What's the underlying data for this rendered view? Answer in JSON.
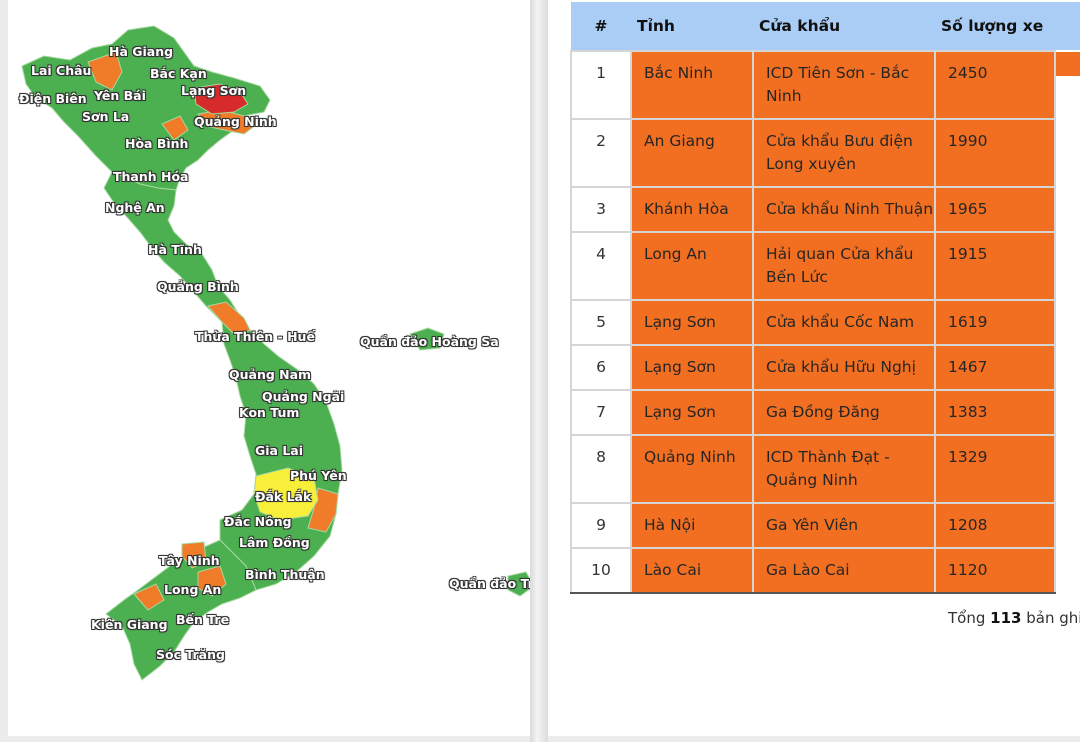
{
  "map": {
    "labels": [
      {
        "id": "ha-giang",
        "text": "Hà Giang"
      },
      {
        "id": "lai-chau",
        "text": "Lai Châu"
      },
      {
        "id": "bac-kan",
        "text": "Bắc Kạn"
      },
      {
        "id": "lang-son",
        "text": "Lạng Sơn"
      },
      {
        "id": "yen-bai",
        "text": "Yên Bái"
      },
      {
        "id": "dien-bien",
        "text": "Điện Biên"
      },
      {
        "id": "son-la",
        "text": "Sơn La"
      },
      {
        "id": "quang-ninh",
        "text": "Quảng Ninh"
      },
      {
        "id": "hoa-binh",
        "text": "Hòa Bình"
      },
      {
        "id": "thanh-hoa",
        "text": "Thanh Hóa"
      },
      {
        "id": "nghe-an",
        "text": "Nghệ An"
      },
      {
        "id": "ha-tinh",
        "text": "Hà Tĩnh"
      },
      {
        "id": "quang-binh",
        "text": "Quảng Bình"
      },
      {
        "id": "thua-thien-hue",
        "text": "Thừa Thiên - Huế"
      },
      {
        "id": "hoang-sa",
        "text": "Quần đảo Hoàng Sa"
      },
      {
        "id": "quang-nam",
        "text": "Quảng Nam"
      },
      {
        "id": "quang-ngai",
        "text": "Quảng Ngãi"
      },
      {
        "id": "kon-tum",
        "text": "Kon Tum"
      },
      {
        "id": "gia-lai",
        "text": "Gia Lai"
      },
      {
        "id": "phu-yen",
        "text": "Phú Yên"
      },
      {
        "id": "dak-lak",
        "text": "Đắk Lắk"
      },
      {
        "id": "dak-nong",
        "text": "Đắc Nông"
      },
      {
        "id": "lam-dong",
        "text": "Lâm Đồng"
      },
      {
        "id": "tay-ninh",
        "text": "Tây Ninh"
      },
      {
        "id": "binh-thuan",
        "text": "Bình Thuận"
      },
      {
        "id": "long-an",
        "text": "Long An"
      },
      {
        "id": "truong-sa",
        "text": "Quần đảo Tr"
      },
      {
        "id": "kien-giang",
        "text": "Kiên Giang"
      },
      {
        "id": "ben-tre",
        "text": "Bến Tre"
      },
      {
        "id": "soc-trang",
        "text": "Sóc Trăng"
      }
    ],
    "colors": {
      "base": "#4caf50",
      "medium": "#f07c2a",
      "high": "#d72a2a",
      "highlight_yellow": "#f7ef3a",
      "border": "#a6d8a0"
    }
  },
  "table": {
    "headers": [
      "#",
      "Tỉnh",
      "Cửa khẩu",
      "Số lượng xe"
    ],
    "rows": [
      {
        "rank": "1",
        "province": "Bắc Ninh",
        "gate": "ICD Tiên Sơn - Bắc Ninh",
        "vehicles": "2450"
      },
      {
        "rank": "2",
        "province": "An Giang",
        "gate": "Cửa khẩu Bưu điện Long xuyên",
        "vehicles": "1990"
      },
      {
        "rank": "3",
        "province": "Khánh Hòa",
        "gate": "Cửa khẩu Ninh Thuận",
        "vehicles": "1965"
      },
      {
        "rank": "4",
        "province": "Long An",
        "gate": "Hải quan Cửa khẩu Bến Lức",
        "vehicles": "1915"
      },
      {
        "rank": "5",
        "province": "Lạng Sơn",
        "gate": "Cửa khẩu Cốc Nam",
        "vehicles": "1619"
      },
      {
        "rank": "6",
        "province": "Lạng Sơn",
        "gate": "Cửa khẩu Hữu Nghị",
        "vehicles": "1467"
      },
      {
        "rank": "7",
        "province": "Lạng Sơn",
        "gate": "Ga Đồng Đăng",
        "vehicles": "1383"
      },
      {
        "rank": "8",
        "province": "Quảng Ninh",
        "gate": "ICD Thành Đạt - Quảng Ninh",
        "vehicles": "1329"
      },
      {
        "rank": "9",
        "province": "Hà Nội",
        "gate": "Ga Yên Viên",
        "vehicles": "1208"
      },
      {
        "rank": "10",
        "province": "Lào Cai",
        "gate": "Ga Lào Cai",
        "vehicles": "1120"
      }
    ],
    "highlight_color": "#f26f21",
    "header_color": "#a9cdf5"
  },
  "footer": {
    "prefix": "Tổng",
    "count": "113",
    "suffix": "bản ghi"
  }
}
